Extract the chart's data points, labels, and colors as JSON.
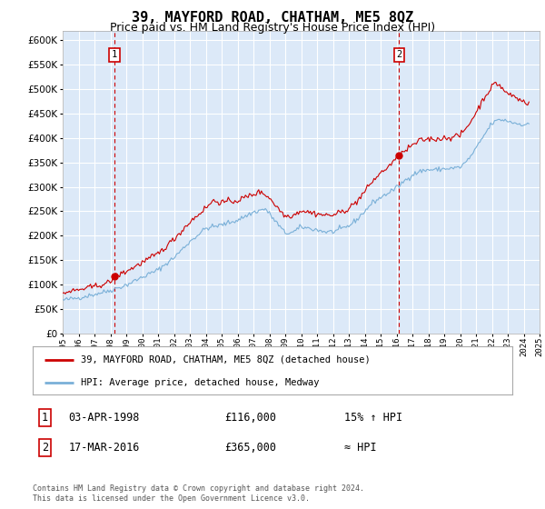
{
  "title": "39, MAYFORD ROAD, CHATHAM, ME5 8QZ",
  "subtitle": "Price paid vs. HM Land Registry's House Price Index (HPI)",
  "title_fontsize": 11,
  "subtitle_fontsize": 9,
  "ylim": [
    0,
    620000
  ],
  "yticks": [
    0,
    50000,
    100000,
    150000,
    200000,
    250000,
    300000,
    350000,
    400000,
    450000,
    500000,
    550000,
    600000
  ],
  "ytick_labels": [
    "£0",
    "£50K",
    "£100K",
    "£150K",
    "£200K",
    "£250K",
    "£300K",
    "£350K",
    "£400K",
    "£450K",
    "£500K",
    "£550K",
    "£600K"
  ],
  "x_start_year": 1995,
  "x_end_year": 2025,
  "bg_color": "#dce9f8",
  "grid_color": "#ffffff",
  "red_color": "#cc0000",
  "blue_color": "#7ab0d8",
  "marker1_year": 1998.25,
  "marker1_value": 116000,
  "marker2_year": 2016.17,
  "marker2_value": 365000,
  "legend_label_red": "39, MAYFORD ROAD, CHATHAM, ME5 8QZ (detached house)",
  "legend_label_blue": "HPI: Average price, detached house, Medway",
  "annotation1_label": "1",
  "annotation1_date": "03-APR-1998",
  "annotation1_price": "£116,000",
  "annotation1_hpi": "15% ↑ HPI",
  "annotation2_label": "2",
  "annotation2_date": "17-MAR-2016",
  "annotation2_price": "£365,000",
  "annotation2_hpi": "≈ HPI",
  "footer": "Contains HM Land Registry data © Crown copyright and database right 2024.\nThis data is licensed under the Open Government Licence v3.0."
}
